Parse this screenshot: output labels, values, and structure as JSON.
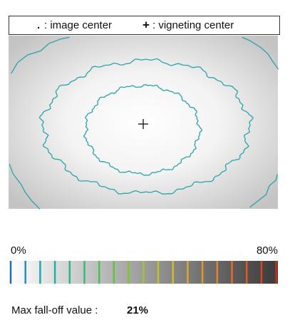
{
  "legend": {
    "items": [
      {
        "symbol": ".",
        "label": ": image center"
      },
      {
        "symbol": "+",
        "label": ": vigneting center"
      }
    ]
  },
  "scale": {
    "min_label": "0%",
    "max_label": "80%"
  },
  "result": {
    "label": "Max fall-off value :",
    "value": "21%"
  }
}
